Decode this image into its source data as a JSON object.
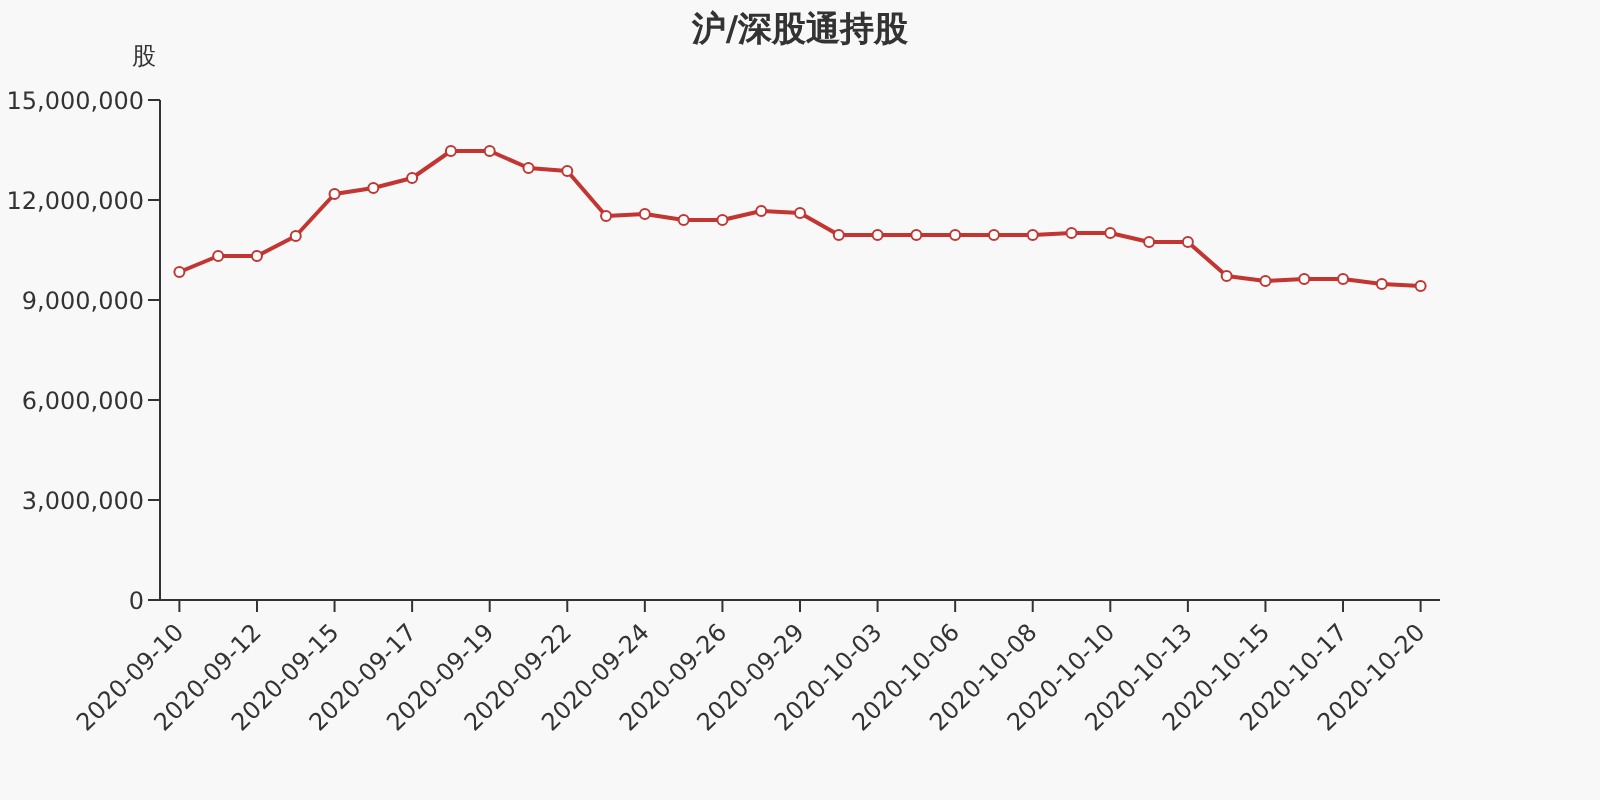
{
  "chart_data": {
    "type": "line",
    "title": "沪/深股通持股",
    "ylabel": "股",
    "categories": [
      "2020-09-10",
      null,
      "2020-09-12",
      null,
      "2020-09-15",
      null,
      "2020-09-17",
      null,
      "2020-09-19",
      null,
      "2020-09-22",
      null,
      "2020-09-24",
      null,
      "2020-09-26",
      null,
      "2020-09-29",
      null,
      "2020-10-03",
      null,
      "2020-10-06",
      null,
      "2020-10-08",
      null,
      "2020-10-10",
      null,
      "2020-10-13",
      null,
      "2020-10-15",
      null,
      "2020-10-17",
      null,
      "2020-10-20"
    ],
    "series": [
      {
        "color": "#c23531",
        "values": [
          9840000,
          10320000,
          10320000,
          10920000,
          12180000,
          12360000,
          12660000,
          13470000,
          13470000,
          12960000,
          12870000,
          11520000,
          11580000,
          11400000,
          11400000,
          11670000,
          11610000,
          10950000,
          10950000,
          10950000,
          10950000,
          10950000,
          10950000,
          11010000,
          11010000,
          10740000,
          10740000,
          9720000,
          9570000,
          9630000,
          9630000,
          9480000,
          9420000
        ]
      }
    ],
    "ylim": [
      0,
      15000000
    ],
    "yticks": [
      0,
      {
        "value": 3000000,
        "label": "3,000,000"
      },
      {
        "value": 6000000,
        "label": "6,000,000"
      },
      {
        "value": 9000000,
        "label": "9,000,000"
      },
      {
        "value": 12000000,
        "label": "12,000,000"
      },
      {
        "value": 15000000,
        "label": "15,000,000"
      }
    ],
    "grid": false,
    "legend": false,
    "marker": "circle",
    "line_style": "solid"
  }
}
